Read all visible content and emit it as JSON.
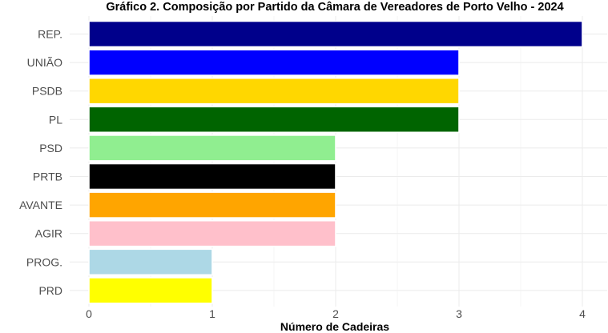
{
  "chart_data": {
    "type": "bar",
    "orientation": "horizontal",
    "title": "Gráfico 2. Composição por Partido da Câmara de Vereadores de Porto Velho - 2024",
    "xlabel": "Número de Cadeiras",
    "ylabel": "",
    "xlim": [
      0,
      4
    ],
    "xticks": [
      "0",
      "1",
      "2",
      "3",
      "4"
    ],
    "grid": true,
    "categories": [
      "REP.",
      "UNIÃO",
      "PSDB",
      "PL",
      "PSD",
      "PRTB",
      "AVANTE",
      "AGIR",
      "PROG.",
      "PRD"
    ],
    "values": [
      4,
      3,
      3,
      3,
      2,
      2,
      2,
      2,
      1,
      1
    ],
    "colors": [
      "#00008B",
      "#0000FF",
      "#FFD700",
      "#006400",
      "#90EE90",
      "#000000",
      "#FFA500",
      "#FFC0CB",
      "#ADD8E6",
      "#FFFF00"
    ]
  }
}
